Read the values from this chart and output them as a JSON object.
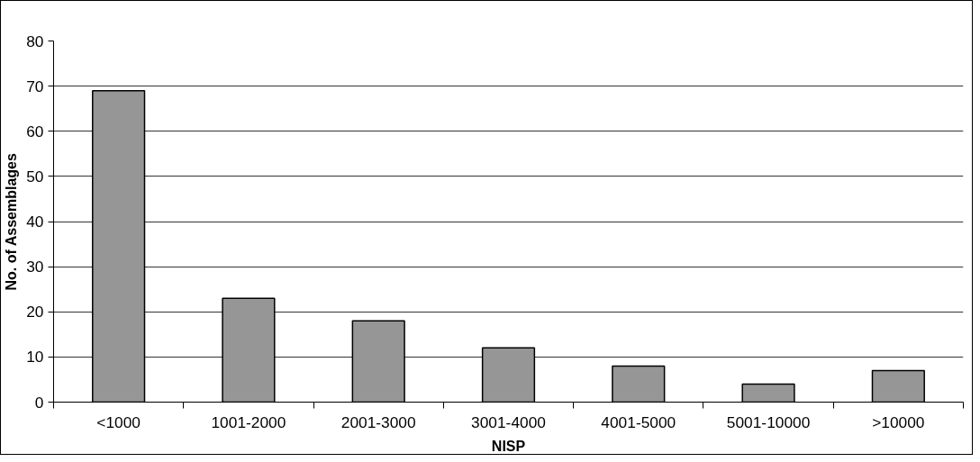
{
  "chart_data": {
    "type": "bar",
    "xlabel": "NISP",
    "ylabel": "No. of Assemblages",
    "categories": [
      "<1000",
      "1001-2000",
      "2001-3000",
      "3001-4000",
      "4001-5000",
      "5001-10000",
      ">10000"
    ],
    "values": [
      69,
      23,
      18,
      12,
      8,
      4,
      7
    ],
    "color": "#969696",
    "ylim": [
      0,
      80
    ],
    "yticks": [
      0,
      10,
      20,
      30,
      40,
      50,
      60,
      70,
      80
    ],
    "grid": "y"
  }
}
